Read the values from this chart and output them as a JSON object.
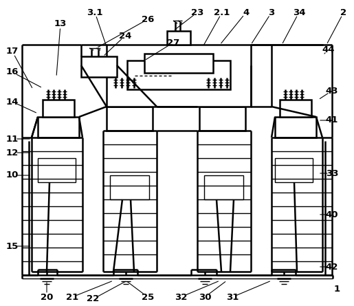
{
  "bg_color": "#ffffff",
  "line_color": "#000000",
  "lw_thin": 1.0,
  "lw_main": 1.8,
  "fs": 9.5
}
